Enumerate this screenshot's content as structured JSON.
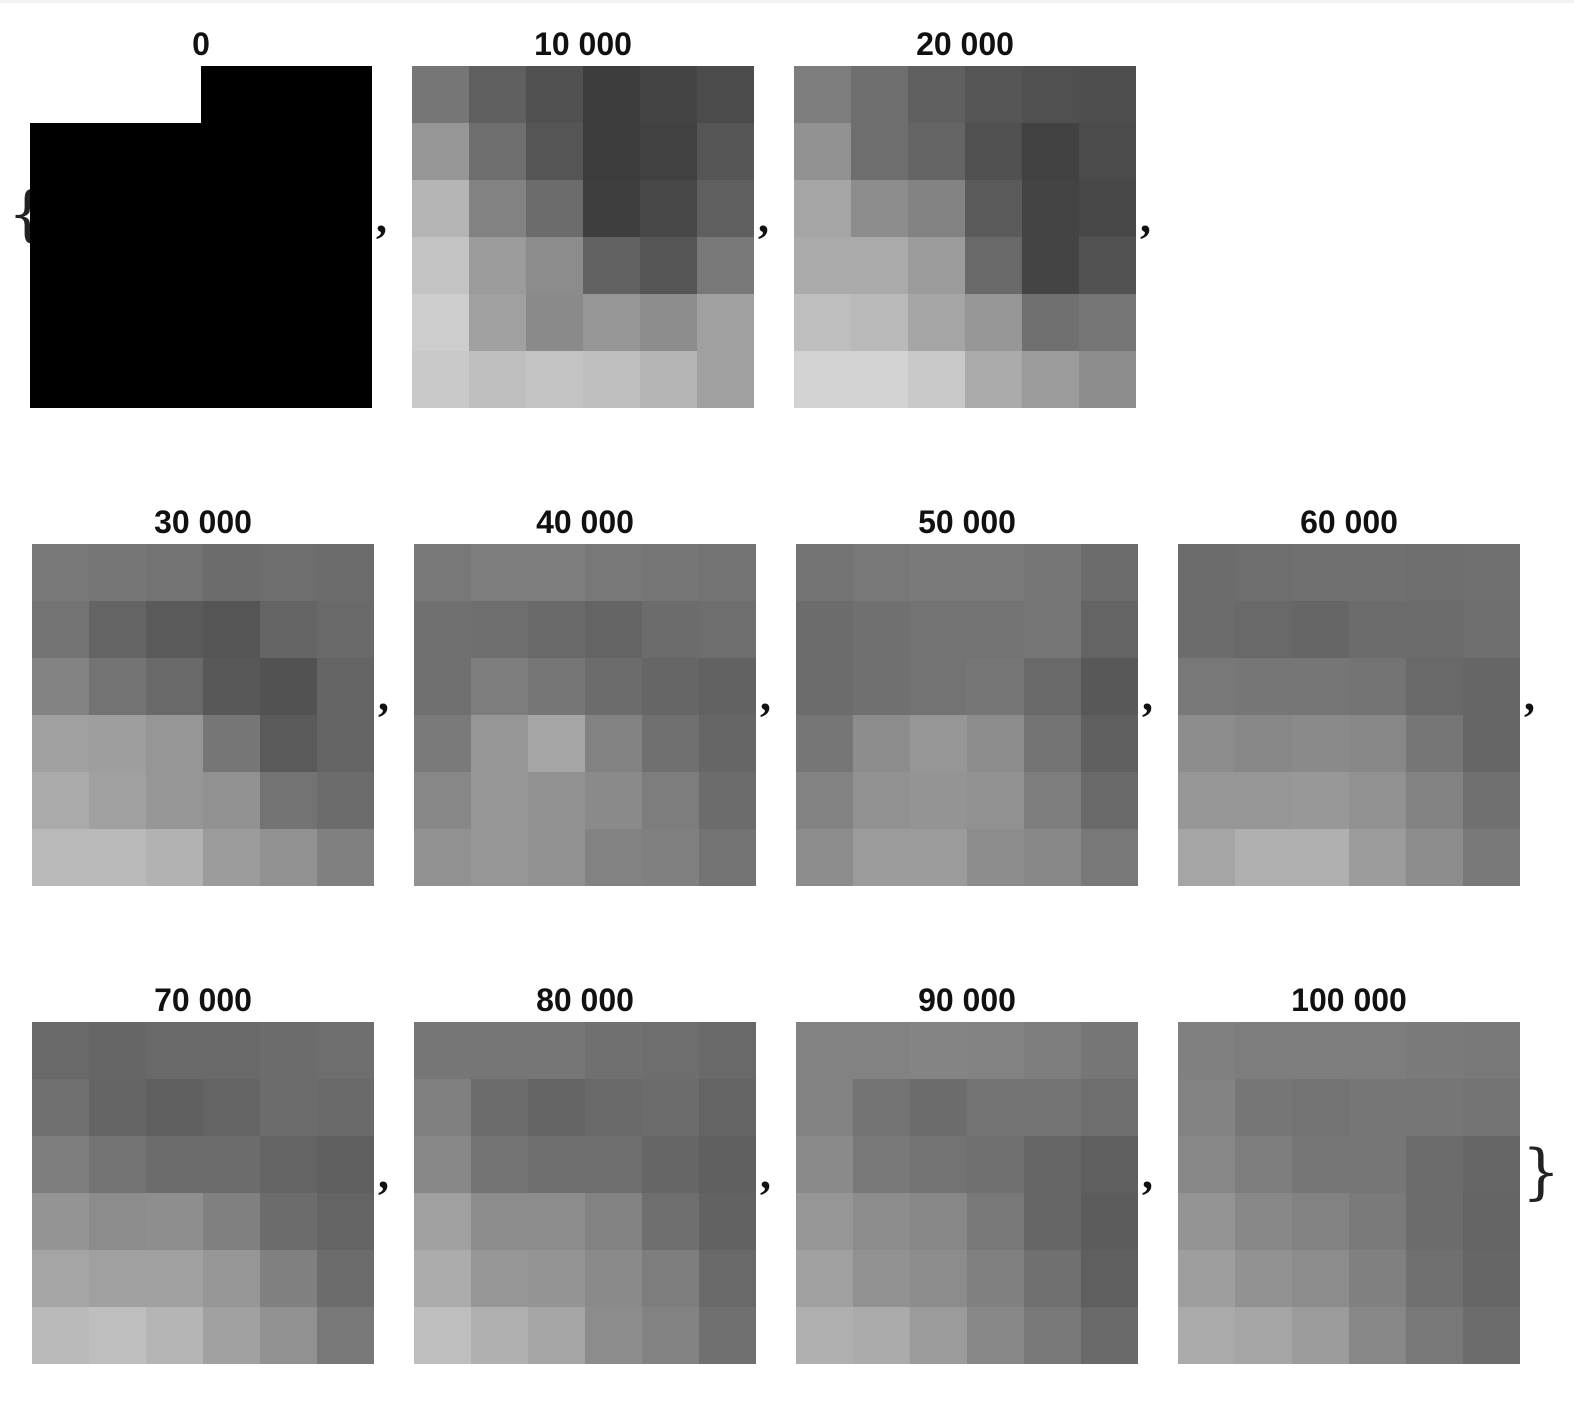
{
  "open_brace": "{",
  "close_brace": "}",
  "separator": ",",
  "panels": [
    {
      "label": "0",
      "cells": [
        [
          255,
          255,
          255,
          0,
          0,
          0
        ],
        [
          0,
          0,
          0,
          0,
          0,
          0
        ],
        [
          0,
          0,
          0,
          0,
          0,
          0
        ],
        [
          0,
          0,
          0,
          0,
          0,
          0
        ],
        [
          0,
          0,
          0,
          0,
          0,
          0
        ],
        [
          0,
          0,
          0,
          0,
          0,
          0
        ]
      ]
    },
    {
      "label": "10 000",
      "cells": [
        [
          118,
          95,
          80,
          60,
          68,
          75
        ],
        [
          150,
          110,
          85,
          60,
          65,
          85
        ],
        [
          180,
          130,
          108,
          62,
          72,
          95
        ],
        [
          195,
          155,
          140,
          98,
          85,
          120
        ],
        [
          205,
          160,
          138,
          150,
          140,
          160
        ],
        [
          200,
          190,
          195,
          190,
          180,
          160
        ]
      ]
    },
    {
      "label": "20 000",
      "cells": [
        [
          125,
          110,
          95,
          85,
          80,
          78
        ],
        [
          145,
          110,
          100,
          80,
          65,
          75
        ],
        [
          165,
          140,
          130,
          90,
          68,
          72
        ],
        [
          170,
          170,
          155,
          105,
          68,
          82
        ],
        [
          190,
          185,
          165,
          150,
          112,
          118
        ],
        [
          210,
          210,
          200,
          170,
          155,
          140
        ]
      ]
    },
    {
      "label": "30 000",
      "cells": [
        [
          120,
          118,
          115,
          108,
          110,
          108
        ],
        [
          115,
          100,
          90,
          85,
          100,
          105
        ],
        [
          130,
          115,
          105,
          88,
          82,
          100
        ],
        [
          160,
          158,
          150,
          118,
          90,
          100
        ],
        [
          170,
          160,
          150,
          145,
          115,
          108
        ],
        [
          185,
          185,
          178,
          155,
          145,
          128
        ]
      ]
    },
    {
      "label": "40 000",
      "cells": [
        [
          120,
          125,
          125,
          120,
          118,
          115
        ],
        [
          112,
          110,
          105,
          100,
          108,
          110
        ],
        [
          112,
          125,
          118,
          108,
          102,
          98
        ],
        [
          122,
          150,
          165,
          130,
          112,
          102
        ],
        [
          135,
          150,
          145,
          138,
          125,
          108
        ],
        [
          145,
          150,
          145,
          130,
          128,
          115
        ]
      ]
    },
    {
      "label": "50 000",
      "cells": [
        [
          115,
          120,
          122,
          122,
          118,
          108
        ],
        [
          108,
          112,
          115,
          115,
          118,
          100
        ],
        [
          108,
          112,
          115,
          118,
          105,
          88
        ],
        [
          118,
          140,
          150,
          140,
          115,
          95
        ],
        [
          130,
          145,
          148,
          145,
          125,
          105
        ],
        [
          140,
          155,
          155,
          140,
          135,
          120
        ]
      ]
    },
    {
      "label": "60 000",
      "cells": [
        [
          108,
          110,
          112,
          112,
          110,
          112
        ],
        [
          108,
          105,
          102,
          108,
          108,
          110
        ],
        [
          120,
          118,
          118,
          115,
          105,
          102
        ],
        [
          140,
          135,
          138,
          135,
          118,
          102
        ],
        [
          150,
          150,
          152,
          145,
          130,
          112
        ],
        [
          165,
          175,
          175,
          155,
          140,
          120
        ]
      ]
    },
    {
      "label": "70 000",
      "cells": [
        [
          105,
          102,
          105,
          105,
          108,
          110
        ],
        [
          112,
          100,
          95,
          100,
          108,
          105
        ],
        [
          125,
          115,
          108,
          108,
          100,
          95
        ],
        [
          148,
          140,
          142,
          128,
          108,
          100
        ],
        [
          165,
          160,
          160,
          150,
          128,
          108
        ],
        [
          185,
          190,
          180,
          160,
          145,
          120
        ]
      ]
    },
    {
      "label": "80 000",
      "cells": [
        [
          118,
          118,
          118,
          112,
          110,
          105
        ],
        [
          128,
          108,
          100,
          105,
          108,
          100
        ],
        [
          135,
          115,
          110,
          110,
          102,
          95
        ],
        [
          160,
          140,
          140,
          130,
          110,
          98
        ],
        [
          172,
          150,
          148,
          138,
          125,
          105
        ],
        [
          190,
          175,
          165,
          140,
          130,
          112
        ]
      ]
    },
    {
      "label": "90 000",
      "cells": [
        [
          130,
          130,
          132,
          130,
          125,
          118
        ],
        [
          130,
          115,
          108,
          115,
          115,
          110
        ],
        [
          138,
          120,
          115,
          112,
          102,
          95
        ],
        [
          150,
          140,
          135,
          120,
          102,
          92
        ],
        [
          160,
          145,
          140,
          128,
          112,
          95
        ],
        [
          175,
          170,
          155,
          135,
          120,
          105
        ]
      ]
    },
    {
      "label": "100 000",
      "cells": [
        [
          128,
          125,
          125,
          125,
          122,
          120
        ],
        [
          130,
          118,
          115,
          118,
          118,
          115
        ],
        [
          135,
          125,
          118,
          118,
          108,
          102
        ],
        [
          148,
          135,
          130,
          122,
          108,
          100
        ],
        [
          158,
          145,
          140,
          128,
          112,
          102
        ],
        [
          170,
          165,
          155,
          135,
          120,
          108
        ]
      ]
    }
  ]
}
